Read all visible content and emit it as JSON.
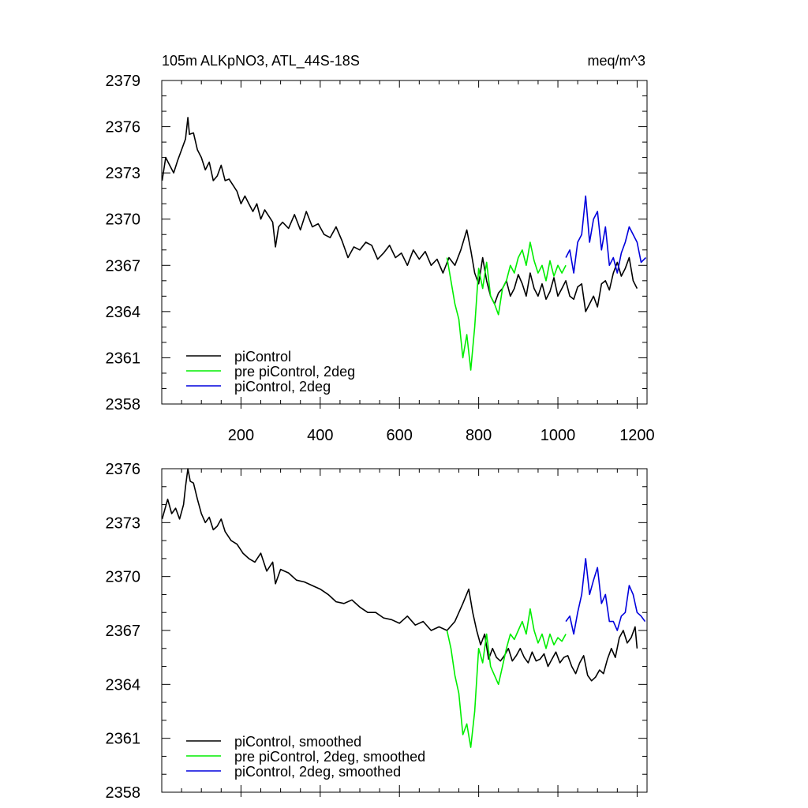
{
  "chart_data": [
    {
      "type": "line",
      "title": "105m ALKpNO3, ATL_44S-18S",
      "units": "meq/m^3",
      "xlim": [
        0,
        1225
      ],
      "ylim": [
        2358,
        2379
      ],
      "xticks": [
        "200",
        "400",
        "600",
        "800",
        "1000",
        "1200"
      ],
      "yticks": [
        "2358",
        "2361",
        "2364",
        "2367",
        "2370",
        "2373",
        "2376",
        "2379"
      ],
      "legend_position": "bottom-left",
      "series": [
        {
          "name": "piControl",
          "color": "#000000",
          "x": [
            1,
            10,
            20,
            30,
            40,
            50,
            60,
            66,
            70,
            80,
            90,
            100,
            110,
            120,
            130,
            140,
            150,
            160,
            170,
            180,
            190,
            200,
            210,
            220,
            230,
            240,
            250,
            260,
            270,
            280,
            287,
            295,
            305,
            320,
            335,
            350,
            365,
            380,
            395,
            410,
            425,
            440,
            455,
            470,
            485,
            500,
            515,
            530,
            545,
            560,
            575,
            590,
            605,
            620,
            635,
            650,
            665,
            680,
            695,
            710,
            725,
            740,
            755,
            770,
            780,
            790,
            800,
            810,
            820,
            830,
            840,
            850,
            860,
            870,
            880,
            890,
            900,
            910,
            920,
            930,
            940,
            950,
            960,
            970,
            980,
            990,
            1000,
            1010,
            1020,
            1030,
            1040,
            1050,
            1060,
            1070,
            1080,
            1090,
            1100,
            1110,
            1120,
            1130,
            1140,
            1150,
            1160,
            1170,
            1180,
            1190,
            1200
          ],
          "y": [
            2372.5,
            2374.0,
            2373.5,
            2373.0,
            2373.8,
            2374.5,
            2375.2,
            2376.6,
            2375.5,
            2375.6,
            2374.5,
            2374.0,
            2373.2,
            2373.7,
            2372.5,
            2372.8,
            2373.5,
            2372.5,
            2372.6,
            2372.2,
            2371.8,
            2371.0,
            2371.5,
            2371.0,
            2370.5,
            2371.0,
            2370.0,
            2370.6,
            2370.2,
            2369.8,
            2368.2,
            2369.5,
            2369.8,
            2369.4,
            2370.3,
            2369.3,
            2370.5,
            2369.5,
            2369.7,
            2369.0,
            2368.8,
            2369.5,
            2368.6,
            2367.5,
            2368.2,
            2368.0,
            2368.5,
            2368.3,
            2367.4,
            2367.8,
            2368.3,
            2367.5,
            2367.8,
            2367.0,
            2368.0,
            2367.4,
            2367.9,
            2367.0,
            2367.4,
            2366.5,
            2367.5,
            2367.0,
            2368.0,
            2369.3,
            2368.0,
            2366.5,
            2365.8,
            2367.5,
            2366.0,
            2365.0,
            2364.5,
            2365.2,
            2365.5,
            2366.0,
            2365.0,
            2365.5,
            2366.4,
            2365.8,
            2365.0,
            2366.5,
            2365.5,
            2365.0,
            2365.8,
            2364.8,
            2365.3,
            2366.2,
            2365.0,
            2365.5,
            2366.0,
            2365.0,
            2364.8,
            2365.6,
            2365.8,
            2364.0,
            2364.5,
            2365.0,
            2364.3,
            2365.8,
            2366.0,
            2365.4,
            2366.5,
            2367.2,
            2366.3,
            2366.8,
            2367.5,
            2366.0,
            2365.5
          ]
        },
        {
          "name": "pre piControl, 2deg",
          "color": "#00ee00",
          "x": [
            720,
            730,
            740,
            750,
            760,
            770,
            780,
            790,
            800,
            810,
            820,
            830,
            840,
            850,
            860,
            870,
            880,
            890,
            900,
            910,
            920,
            930,
            940,
            950,
            960,
            970,
            980,
            990,
            1000,
            1010,
            1020
          ],
          "y": [
            2367.5,
            2366.0,
            2364.5,
            2363.5,
            2361.0,
            2362.5,
            2360.2,
            2363.0,
            2366.8,
            2365.5,
            2367.2,
            2365.0,
            2364.5,
            2363.8,
            2365.5,
            2366.0,
            2367.0,
            2366.5,
            2367.5,
            2368.0,
            2367.0,
            2368.5,
            2367.3,
            2366.5,
            2367.0,
            2366.0,
            2367.3,
            2366.3,
            2367.0,
            2366.5,
            2367.0
          ]
        },
        {
          "name": "piControl, 2deg",
          "color": "#0000dd",
          "x": [
            1020,
            1030,
            1040,
            1050,
            1060,
            1070,
            1080,
            1090,
            1100,
            1110,
            1120,
            1130,
            1140,
            1150,
            1160,
            1170,
            1180,
            1190,
            1200,
            1210,
            1222
          ],
          "y": [
            2367.5,
            2368.0,
            2366.5,
            2368.5,
            2369.0,
            2371.5,
            2368.5,
            2370.0,
            2370.5,
            2368.0,
            2369.5,
            2367.0,
            2367.5,
            2366.5,
            2367.8,
            2368.5,
            2369.5,
            2369.0,
            2368.5,
            2367.2,
            2367.5
          ]
        }
      ]
    },
    {
      "type": "line",
      "xlim": [
        0,
        1225
      ],
      "ylim": [
        2358,
        2376
      ],
      "yticks": [
        "2358",
        "2361",
        "2364",
        "2367",
        "2370",
        "2373",
        "2376"
      ],
      "legend_position": "bottom-left",
      "series": [
        {
          "name": "piControl, smoothed",
          "color": "#000000",
          "x": [
            1,
            15,
            25,
            35,
            45,
            55,
            60,
            66,
            72,
            80,
            90,
            100,
            110,
            120,
            130,
            140,
            150,
            160,
            175,
            190,
            205,
            220,
            235,
            250,
            265,
            280,
            287,
            300,
            320,
            340,
            360,
            380,
            400,
            420,
            440,
            460,
            480,
            500,
            520,
            540,
            560,
            580,
            600,
            620,
            640,
            660,
            680,
            700,
            720,
            740,
            760,
            775,
            785,
            795,
            805,
            815,
            825,
            835,
            845,
            855,
            865,
            875,
            885,
            895,
            905,
            915,
            925,
            935,
            945,
            955,
            965,
            975,
            985,
            995,
            1005,
            1015,
            1025,
            1035,
            1045,
            1055,
            1065,
            1075,
            1085,
            1095,
            1105,
            1115,
            1125,
            1135,
            1145,
            1155,
            1165,
            1175,
            1185,
            1195,
            1200
          ],
          "y": [
            2373.2,
            2374.3,
            2373.5,
            2373.8,
            2373.2,
            2374.0,
            2375.0,
            2376.0,
            2375.3,
            2375.2,
            2374.3,
            2373.5,
            2373.0,
            2373.3,
            2372.6,
            2372.8,
            2373.2,
            2372.5,
            2372.0,
            2371.8,
            2371.3,
            2371.0,
            2370.8,
            2371.3,
            2370.3,
            2370.8,
            2369.6,
            2370.4,
            2370.2,
            2369.8,
            2369.7,
            2369.5,
            2369.3,
            2369.0,
            2368.6,
            2368.5,
            2368.7,
            2368.3,
            2368.0,
            2368.0,
            2367.7,
            2367.6,
            2367.4,
            2367.8,
            2367.3,
            2367.5,
            2367.0,
            2367.2,
            2367.0,
            2367.5,
            2368.5,
            2369.3,
            2368.0,
            2367.0,
            2366.2,
            2366.8,
            2365.4,
            2366.0,
            2365.5,
            2365.3,
            2365.6,
            2366.0,
            2365.3,
            2365.6,
            2366.0,
            2365.5,
            2365.2,
            2365.8,
            2365.3,
            2365.4,
            2365.7,
            2365.0,
            2365.4,
            2365.8,
            2365.2,
            2365.5,
            2365.6,
            2365.0,
            2364.6,
            2365.2,
            2365.6,
            2364.5,
            2364.2,
            2364.4,
            2364.8,
            2364.6,
            2365.4,
            2366.0,
            2365.5,
            2366.6,
            2367.0,
            2366.3,
            2366.6,
            2367.2,
            2366.0
          ]
        },
        {
          "name": "pre piControl, 2deg, smoothed",
          "color": "#00ee00",
          "x": [
            720,
            730,
            740,
            750,
            760,
            770,
            780,
            790,
            800,
            810,
            820,
            830,
            840,
            850,
            860,
            870,
            880,
            890,
            900,
            910,
            920,
            930,
            940,
            950,
            960,
            970,
            980,
            990,
            1000,
            1010,
            1020
          ],
          "y": [
            2367.0,
            2366.0,
            2364.5,
            2363.5,
            2361.2,
            2361.8,
            2360.5,
            2362.5,
            2366.0,
            2365.2,
            2366.8,
            2365.0,
            2364.5,
            2364.0,
            2365.0,
            2366.0,
            2366.8,
            2366.5,
            2367.0,
            2367.5,
            2366.8,
            2368.2,
            2367.0,
            2366.3,
            2366.8,
            2366.0,
            2366.8,
            2366.2,
            2366.6,
            2366.4,
            2366.8
          ]
        },
        {
          "name": "piControl, 2deg, smoothed",
          "color": "#0000dd",
          "x": [
            1020,
            1030,
            1040,
            1050,
            1060,
            1070,
            1080,
            1090,
            1100,
            1110,
            1120,
            1130,
            1140,
            1150,
            1160,
            1170,
            1180,
            1190,
            1200,
            1210,
            1220
          ],
          "y": [
            2367.5,
            2367.8,
            2366.8,
            2368.0,
            2369.0,
            2371.0,
            2369.0,
            2369.8,
            2370.5,
            2368.5,
            2369.0,
            2367.5,
            2367.5,
            2367.0,
            2367.8,
            2368.0,
            2369.5,
            2369.0,
            2368.0,
            2367.8,
            2367.5
          ]
        }
      ]
    }
  ]
}
